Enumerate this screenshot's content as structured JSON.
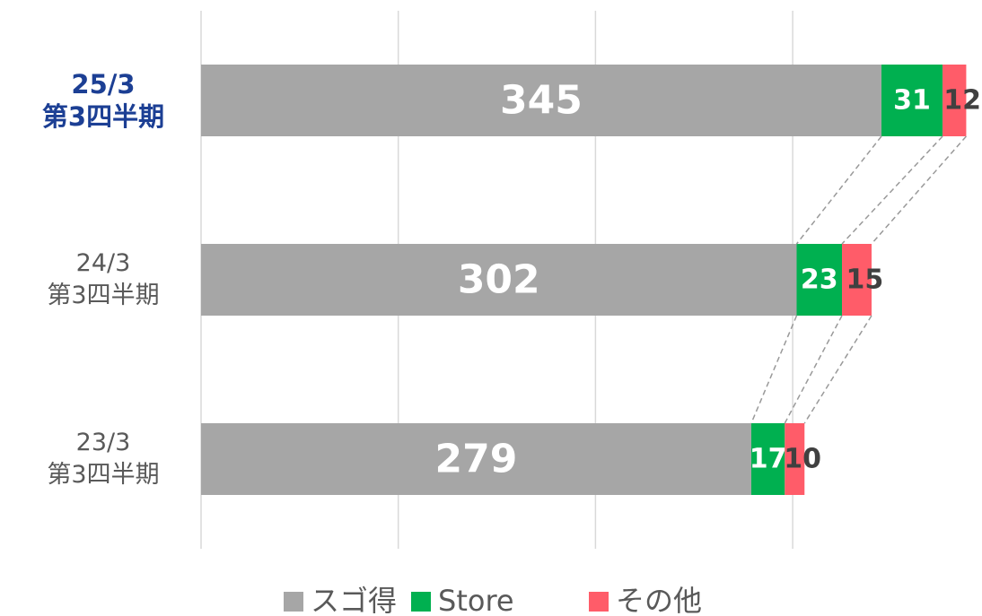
{
  "chart_data": {
    "type": "stacked_barh",
    "categories": [
      "25/3\n第3四半期",
      "24/3\n第3四半期",
      "23/3\n第3四半期"
    ],
    "category_label_colors": [
      "#1c3f94",
      "#595959",
      "#595959"
    ],
    "category_label_bold": [
      true,
      false,
      false
    ],
    "series": [
      {
        "name": "スゴ得",
        "color": "#a6a6a6",
        "label_color": "#ffffff",
        "values": [
          345,
          302,
          279
        ]
      },
      {
        "name": "Store",
        "color": "#00b050",
        "label_color": "#ffffff",
        "values": [
          31,
          23,
          17
        ]
      },
      {
        "name": "その他",
        "color": "#ff5c69",
        "label_color": "#404040",
        "values": [
          12,
          15,
          10
        ]
      }
    ],
    "xlim": [
      0,
      396
    ],
    "xticks": [
      0,
      100,
      200,
      300
    ],
    "grid": true,
    "connector_lines": true,
    "legend": "bottom"
  }
}
